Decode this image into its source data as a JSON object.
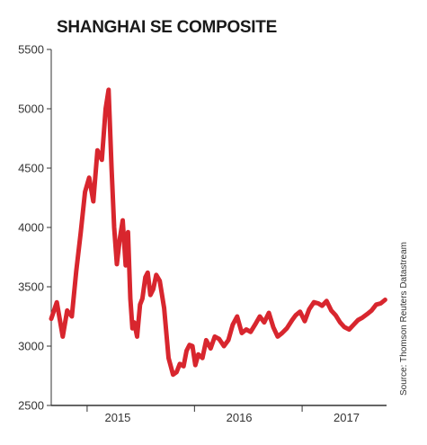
{
  "chart_data": {
    "type": "line",
    "title": "SHANGHAI SE COMPOSITE",
    "source": "Source: Thomson Reuters Datastream",
    "ylim": [
      2500,
      5500
    ],
    "yticks": [
      2500,
      3000,
      3500,
      4000,
      4500,
      5000,
      5500
    ],
    "xlim": [
      "2014-09-01",
      "2017-10-15"
    ],
    "xtick_labels": [
      {
        "label": "2015",
        "x": "2015-04-15"
      },
      {
        "label": "2016",
        "x": "2016-06-01"
      },
      {
        "label": "2017",
        "x": "2017-06-01"
      }
    ],
    "year_boundaries": [
      "2015-01-01",
      "2016-01-01",
      "2017-01-01"
    ],
    "grid": false,
    "line_color": "#d8262e",
    "series": [
      {
        "name": "",
        "x": [
          "2014-09-01",
          "2014-09-20",
          "2014-10-10",
          "2014-10-25",
          "2014-11-10",
          "2014-11-25",
          "2014-12-10",
          "2014-12-25",
          "2015-01-08",
          "2015-01-22",
          "2015-02-05",
          "2015-02-20",
          "2015-03-05",
          "2015-03-15",
          "2015-03-25",
          "2015-04-03",
          "2015-04-12",
          "2015-04-22",
          "2015-05-02",
          "2015-05-12",
          "2015-05-20",
          "2015-05-28",
          "2015-06-04",
          "2015-06-10",
          "2015-06-20",
          "2015-06-30",
          "2015-07-08",
          "2015-07-18",
          "2015-07-26",
          "2015-08-04",
          "2015-08-14",
          "2015-08-24",
          "2015-09-05",
          "2015-09-20",
          "2015-10-05",
          "2015-10-20",
          "2015-11-01",
          "2015-11-12",
          "2015-11-25",
          "2015-12-05",
          "2015-12-15",
          "2015-12-25",
          "2016-01-04",
          "2016-01-14",
          "2016-01-28",
          "2016-02-10",
          "2016-02-25",
          "2016-03-10",
          "2016-03-25",
          "2016-04-10",
          "2016-04-25",
          "2016-05-10",
          "2016-05-25",
          "2016-06-10",
          "2016-06-25",
          "2016-07-10",
          "2016-07-25",
          "2016-08-10",
          "2016-08-25",
          "2016-09-10",
          "2016-09-25",
          "2016-10-10",
          "2016-10-25",
          "2016-11-10",
          "2016-11-28",
          "2016-12-10",
          "2016-12-25",
          "2017-01-10",
          "2017-01-25",
          "2017-02-10",
          "2017-02-25",
          "2017-03-10",
          "2017-03-25",
          "2017-04-10",
          "2017-04-25",
          "2017-05-10",
          "2017-05-25",
          "2017-06-10",
          "2017-06-25",
          "2017-07-10",
          "2017-07-25",
          "2017-08-10",
          "2017-08-25",
          "2017-09-10",
          "2017-09-25",
          "2017-10-10"
        ],
        "y": [
          3230,
          3370,
          3080,
          3300,
          3250,
          3630,
          3950,
          4300,
          4420,
          4220,
          4650,
          4570,
          5000,
          5160,
          4500,
          4000,
          3690,
          3900,
          4060,
          3680,
          3960,
          3400,
          3150,
          3200,
          3080,
          3350,
          3400,
          3580,
          3620,
          3430,
          3480,
          3600,
          3550,
          3320,
          2900,
          2760,
          2780,
          2850,
          2830,
          2960,
          3010,
          3000,
          2840,
          2930,
          2900,
          3050,
          2980,
          3080,
          3060,
          3000,
          3050,
          3180,
          3250,
          3110,
          3140,
          3120,
          3180,
          3250,
          3200,
          3280,
          3160,
          3080,
          3110,
          3150,
          3220,
          3260,
          3290,
          3210,
          3310,
          3370,
          3360,
          3340,
          3380,
          3300,
          3260,
          3200,
          3160,
          3140,
          3180,
          3220,
          3240,
          3270,
          3300,
          3350,
          3360,
          3390
        ]
      }
    ]
  }
}
